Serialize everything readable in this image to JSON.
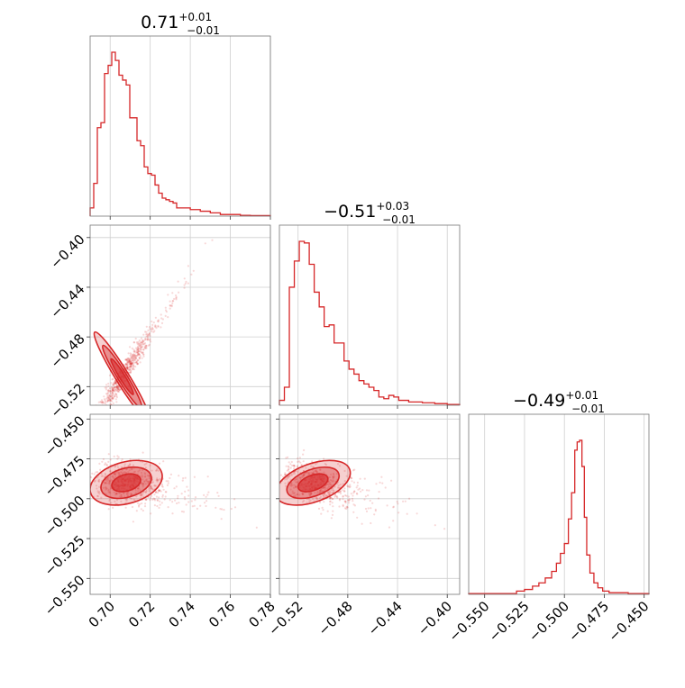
{
  "chart_data": {
    "type": "corner",
    "color": "#d62728",
    "params": [
      {
        "title_value": "0.71",
        "title_plus": "+0.01",
        "title_minus": "−0.01",
        "range": [
          0.69,
          0.78
        ],
        "ticks": [
          0.7,
          0.72,
          0.74,
          0.76,
          0.78
        ],
        "tick_labels": [
          "0.70",
          "0.72",
          "0.74",
          "0.76",
          "0.78"
        ]
      },
      {
        "title_value": "−0.51",
        "title_plus": "+0.03",
        "title_minus": "−0.01",
        "range": [
          -0.535,
          -0.39
        ],
        "ticks": [
          -0.52,
          -0.48,
          -0.44,
          -0.4
        ],
        "tick_labels": [
          "−0.52",
          "−0.48",
          "−0.44",
          "−0.40"
        ]
      },
      {
        "title_value": "−0.49",
        "title_plus": "+0.01",
        "title_minus": "−0.01",
        "range": [
          -0.56,
          -0.447
        ],
        "ticks": [
          -0.55,
          -0.525,
          -0.5,
          -0.475,
          -0.45
        ],
        "tick_labels": [
          "−0.550",
          "−0.525",
          "−0.500",
          "−0.475",
          "−0.450"
        ]
      }
    ],
    "hist1d": [
      {
        "edges": [
          0.69,
          0.6918,
          0.6936,
          0.6954,
          0.6972,
          0.699,
          0.7008,
          0.7026,
          0.7044,
          0.7062,
          0.708,
          0.7098,
          0.7116,
          0.7134,
          0.7152,
          0.717,
          0.7188,
          0.7206,
          0.7224,
          0.7242,
          0.726,
          0.7278,
          0.7296,
          0.7314,
          0.7332,
          0.735,
          0.74,
          0.745,
          0.75,
          0.755,
          0.76,
          0.765,
          0.77,
          0.78
        ],
        "counts": [
          0.05,
          0.2,
          0.54,
          0.57,
          0.87,
          0.92,
          1.0,
          0.95,
          0.86,
          0.83,
          0.8,
          0.6,
          0.6,
          0.46,
          0.43,
          0.3,
          0.26,
          0.25,
          0.19,
          0.14,
          0.11,
          0.1,
          0.09,
          0.08,
          0.05,
          0.05,
          0.04,
          0.03,
          0.02,
          0.01,
          0.01,
          0.005,
          0.003
        ]
      },
      {
        "edges": [
          -0.535,
          -0.531,
          -0.527,
          -0.523,
          -0.519,
          -0.515,
          -0.511,
          -0.507,
          -0.503,
          -0.499,
          -0.495,
          -0.491,
          -0.487,
          -0.483,
          -0.479,
          -0.475,
          -0.471,
          -0.467,
          -0.463,
          -0.459,
          -0.455,
          -0.451,
          -0.447,
          -0.443,
          -0.439,
          -0.435,
          -0.431,
          -0.427,
          -0.42,
          -0.41,
          -0.4,
          -0.39
        ],
        "counts": [
          0.03,
          0.11,
          0.72,
          0.88,
          1.0,
          0.99,
          0.86,
          0.69,
          0.6,
          0.48,
          0.49,
          0.38,
          0.38,
          0.27,
          0.22,
          0.19,
          0.15,
          0.13,
          0.11,
          0.09,
          0.05,
          0.04,
          0.06,
          0.05,
          0.03,
          0.03,
          0.02,
          0.02,
          0.015,
          0.01,
          0.005
        ]
      },
      {
        "edges": [
          -0.56,
          -0.53,
          -0.525,
          -0.52,
          -0.516,
          -0.512,
          -0.508,
          -0.505,
          -0.5025,
          -0.5,
          -0.4975,
          -0.4955,
          -0.4935,
          -0.492,
          -0.4905,
          -0.489,
          -0.4875,
          -0.486,
          -0.484,
          -0.4815,
          -0.479,
          -0.476,
          -0.472,
          -0.46,
          -0.447
        ],
        "counts": [
          0.005,
          0.02,
          0.03,
          0.05,
          0.07,
          0.1,
          0.14,
          0.19,
          0.25,
          0.31,
          0.46,
          0.62,
          0.88,
          0.93,
          0.94,
          0.78,
          0.47,
          0.24,
          0.13,
          0.07,
          0.04,
          0.02,
          0.01,
          0.005
        ]
      }
    ],
    "pairs": [
      {
        "row": 1,
        "col": 0,
        "mean": [
          0.706,
          -0.512
        ],
        "sd": [
          0.007,
          0.018
        ],
        "rho": 0.96
      },
      {
        "row": 2,
        "col": 0,
        "mean": [
          0.708,
          -0.49
        ],
        "sd": [
          0.009,
          0.007
        ],
        "rho": -0.3
      },
      {
        "row": 2,
        "col": 1,
        "mean": [
          -0.508,
          -0.49
        ],
        "sd": [
          0.015,
          0.007
        ],
        "rho": -0.45
      }
    ],
    "grid": true
  }
}
